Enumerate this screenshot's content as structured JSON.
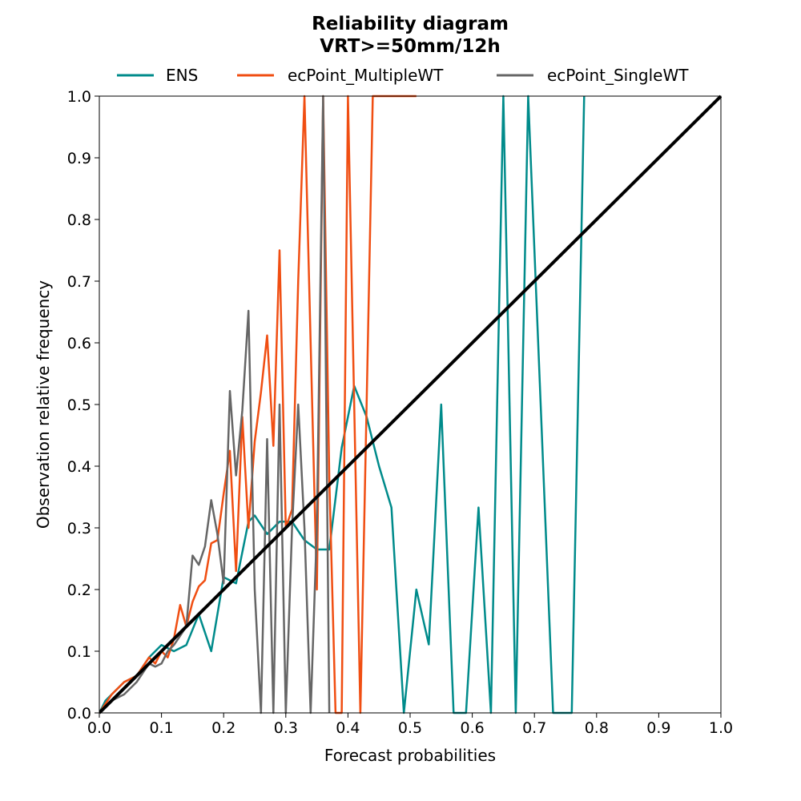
{
  "chart_data": {
    "type": "line",
    "title": "Reliability diagram",
    "subtitle": "VRT>=50mm/12h",
    "xlabel": "Forecast probabilities",
    "ylabel": "Observation relative frequency",
    "xlim": [
      0,
      1
    ],
    "ylim": [
      0,
      1
    ],
    "xticks": [
      "0.0",
      "0.1",
      "0.2",
      "0.3",
      "0.4",
      "0.5",
      "0.6",
      "0.7",
      "0.8",
      "0.9",
      "1.0"
    ],
    "yticks": [
      "0.0",
      "0.1",
      "0.2",
      "0.3",
      "0.4",
      "0.5",
      "0.6",
      "0.7",
      "0.8",
      "0.9",
      "1.0"
    ],
    "grid": false,
    "legend_position": "top",
    "series": [
      {
        "name": "ENS",
        "color": "#008b8b",
        "x": [
          0.0,
          0.01,
          0.02,
          0.04,
          0.06,
          0.08,
          0.1,
          0.12,
          0.14,
          0.16,
          0.18,
          0.2,
          0.22,
          0.24,
          0.25,
          0.27,
          0.29,
          0.31,
          0.33,
          0.35,
          0.37,
          0.39,
          0.41,
          0.43,
          0.45,
          0.47,
          0.49,
          0.51,
          0.53,
          0.55,
          0.57,
          0.59,
          0.61,
          0.63,
          0.65,
          0.67,
          0.69,
          0.71,
          0.73,
          0.76,
          0.78
        ],
        "y": [
          0.0,
          0.02,
          0.03,
          0.05,
          0.06,
          0.09,
          0.11,
          0.1,
          0.11,
          0.16,
          0.1,
          0.22,
          0.21,
          0.31,
          0.32,
          0.29,
          0.31,
          0.31,
          0.28,
          0.265,
          0.265,
          0.43,
          0.53,
          0.48,
          0.4,
          0.333,
          0.0,
          0.2,
          0.111,
          0.5,
          0.0,
          0.0,
          0.333,
          0.0,
          1.0,
          0.0,
          1.0,
          0.5,
          0.0,
          0.0,
          1.0
        ]
      },
      {
        "name": "ecPoint_MultipleWT",
        "color": "#f04e12",
        "x": [
          0.0,
          0.02,
          0.04,
          0.06,
          0.08,
          0.09,
          0.1,
          0.11,
          0.12,
          0.13,
          0.14,
          0.15,
          0.16,
          0.17,
          0.18,
          0.19,
          0.2,
          0.21,
          0.22,
          0.23,
          0.24,
          0.25,
          0.26,
          0.27,
          0.28,
          0.29,
          0.3,
          0.31,
          0.32,
          0.33,
          0.34,
          0.35,
          0.36,
          0.37,
          0.38,
          0.39,
          0.4,
          0.41,
          0.42,
          0.43,
          0.44,
          0.45,
          0.47,
          0.49,
          0.51
        ],
        "y": [
          0.0,
          0.03,
          0.05,
          0.06,
          0.09,
          0.08,
          0.1,
          0.09,
          0.12,
          0.175,
          0.14,
          0.18,
          0.205,
          0.215,
          0.275,
          0.28,
          0.355,
          0.425,
          0.23,
          0.48,
          0.3,
          0.44,
          0.52,
          0.612,
          0.433,
          0.75,
          0.3,
          0.33,
          0.7,
          1.0,
          0.6,
          0.2,
          1.0,
          0.38,
          0.0,
          0.0,
          1.0,
          0.5,
          0.0,
          0.5,
          1.0,
          1.0,
          1.0,
          1.0,
          1.0
        ]
      },
      {
        "name": "ecPoint_SingleWT",
        "color": "#666666",
        "x": [
          0.0,
          0.02,
          0.04,
          0.06,
          0.08,
          0.09,
          0.1,
          0.11,
          0.12,
          0.13,
          0.14,
          0.15,
          0.16,
          0.17,
          0.18,
          0.19,
          0.2,
          0.21,
          0.22,
          0.23,
          0.24,
          0.25,
          0.26,
          0.27,
          0.28,
          0.29,
          0.3,
          0.31,
          0.32,
          0.33,
          0.34,
          0.35,
          0.36,
          0.37
        ],
        "y": [
          0.0,
          0.02,
          0.03,
          0.05,
          0.08,
          0.075,
          0.08,
          0.1,
          0.11,
          0.125,
          0.14,
          0.255,
          0.24,
          0.27,
          0.345,
          0.29,
          0.21,
          0.522,
          0.385,
          0.49,
          0.652,
          0.2,
          0.0,
          0.444,
          0.0,
          0.5,
          0.0,
          0.3,
          0.5,
          0.3,
          0.0,
          0.3,
          1.0,
          0.0
        ]
      },
      {
        "name": "",
        "color": "#000000",
        "x": [
          0.0,
          1.0
        ],
        "y": [
          0.0,
          1.0
        ]
      }
    ]
  }
}
